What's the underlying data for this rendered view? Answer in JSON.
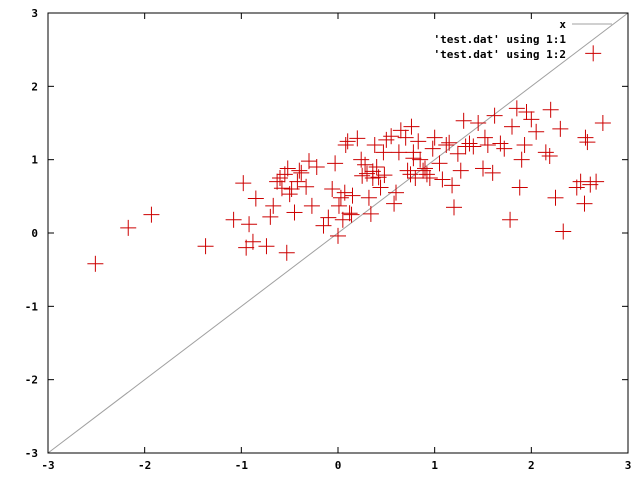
{
  "chart_data": {
    "type": "scatter",
    "xlim": [
      -3,
      3
    ],
    "ylim": [
      -3,
      3
    ],
    "xticks": [
      -3,
      -2,
      -1,
      0,
      1,
      2,
      3
    ],
    "yticks": [
      -3,
      -2,
      -1,
      0,
      1,
      2,
      3
    ],
    "grid": false,
    "legend_position": "top-right",
    "legend": [
      {
        "label": "x",
        "style": "line",
        "color": "#a0a0a0"
      },
      {
        "label": "'test.dat' using 1:1",
        "style": "none"
      },
      {
        "label": "'test.dat' using 1:2",
        "style": "none"
      }
    ],
    "series": [
      {
        "type": "line",
        "color": "#a0a0a0",
        "x": [
          -3,
          3
        ],
        "y": [
          -3,
          3
        ]
      },
      {
        "type": "points",
        "marker": "plus",
        "color": "#cc0000",
        "x": [
          -2.51,
          -2.17,
          -1.93,
          -1.37,
          -1.08,
          -0.98,
          -0.95,
          -0.92,
          -0.85,
          -0.88,
          -0.74,
          -0.7,
          -0.67,
          -0.63,
          -0.6,
          -0.58,
          -0.55,
          -0.52,
          -0.5,
          -0.48,
          -0.45,
          -0.42,
          -0.4,
          -0.38,
          -0.33,
          -0.3,
          -0.27,
          -0.22,
          -0.15,
          -0.1,
          -0.06,
          -0.03,
          0.0,
          0.01,
          0.03,
          0.05,
          0.07,
          0.08,
          0.1,
          0.12,
          0.15,
          0.2,
          0.25,
          0.28,
          0.3,
          0.32,
          0.34,
          0.36,
          0.38,
          0.4,
          0.42,
          0.44,
          0.47,
          0.5,
          0.55,
          0.58,
          0.6,
          0.63,
          0.65,
          0.7,
          0.72,
          0.75,
          0.76,
          0.78,
          0.8,
          0.83,
          0.85,
          0.88,
          0.9,
          0.92,
          0.95,
          0.98,
          1.0,
          1.05,
          1.08,
          1.12,
          1.15,
          1.18,
          1.2,
          1.24,
          1.27,
          1.3,
          1.32,
          1.36,
          1.4,
          1.45,
          1.5,
          1.52,
          1.55,
          1.6,
          1.62,
          1.68,
          1.72,
          1.78,
          1.8,
          1.85,
          1.88,
          1.9,
          1.95,
          2.0,
          2.05,
          2.15,
          2.2,
          2.25,
          2.3,
          2.33,
          2.47,
          2.51,
          2.55,
          2.58,
          2.61,
          2.64,
          2.67,
          2.74,
          -0.53,
          0.14,
          0.48,
          0.36,
          1.93,
          2.19,
          2.56,
          0.78,
          0.24
        ],
        "y": [
          -0.42,
          0.07,
          0.25,
          -0.18,
          0.18,
          0.68,
          -0.2,
          0.12,
          0.47,
          -0.12,
          -0.18,
          0.22,
          0.37,
          0.7,
          0.75,
          0.61,
          0.8,
          0.88,
          0.53,
          0.6,
          0.28,
          0.7,
          0.85,
          0.82,
          0.63,
          0.98,
          0.37,
          0.9,
          0.1,
          0.21,
          0.6,
          0.95,
          -0.04,
          0.37,
          0.48,
          0.18,
          0.55,
          1.2,
          1.25,
          0.27,
          0.51,
          1.29,
          0.78,
          0.93,
          0.81,
          0.48,
          0.26,
          0.84,
          1.2,
          0.9,
          0.76,
          0.62,
          1.1,
          1.27,
          1.32,
          0.4,
          0.55,
          1.1,
          1.4,
          1.3,
          0.85,
          0.8,
          1.45,
          1.1,
          0.75,
          1.25,
          1.0,
          0.85,
          0.88,
          0.8,
          0.75,
          1.15,
          1.3,
          0.95,
          0.73,
          1.2,
          1.23,
          0.65,
          0.35,
          1.08,
          0.85,
          1.53,
          1.18,
          1.22,
          1.18,
          1.5,
          0.88,
          1.3,
          1.2,
          0.82,
          1.6,
          1.22,
          1.15,
          0.18,
          1.45,
          1.7,
          0.62,
          1.0,
          1.65,
          1.55,
          1.38,
          1.1,
          1.68,
          0.48,
          1.42,
          0.02,
          0.62,
          0.7,
          0.4,
          1.24,
          0.66,
          2.45,
          0.7,
          1.5,
          -0.27,
          0.25,
          0.79,
          0.75,
          1.2,
          1.05,
          1.3,
          1.02,
          1.0
        ],
        "note_units": "data units"
      }
    ]
  }
}
